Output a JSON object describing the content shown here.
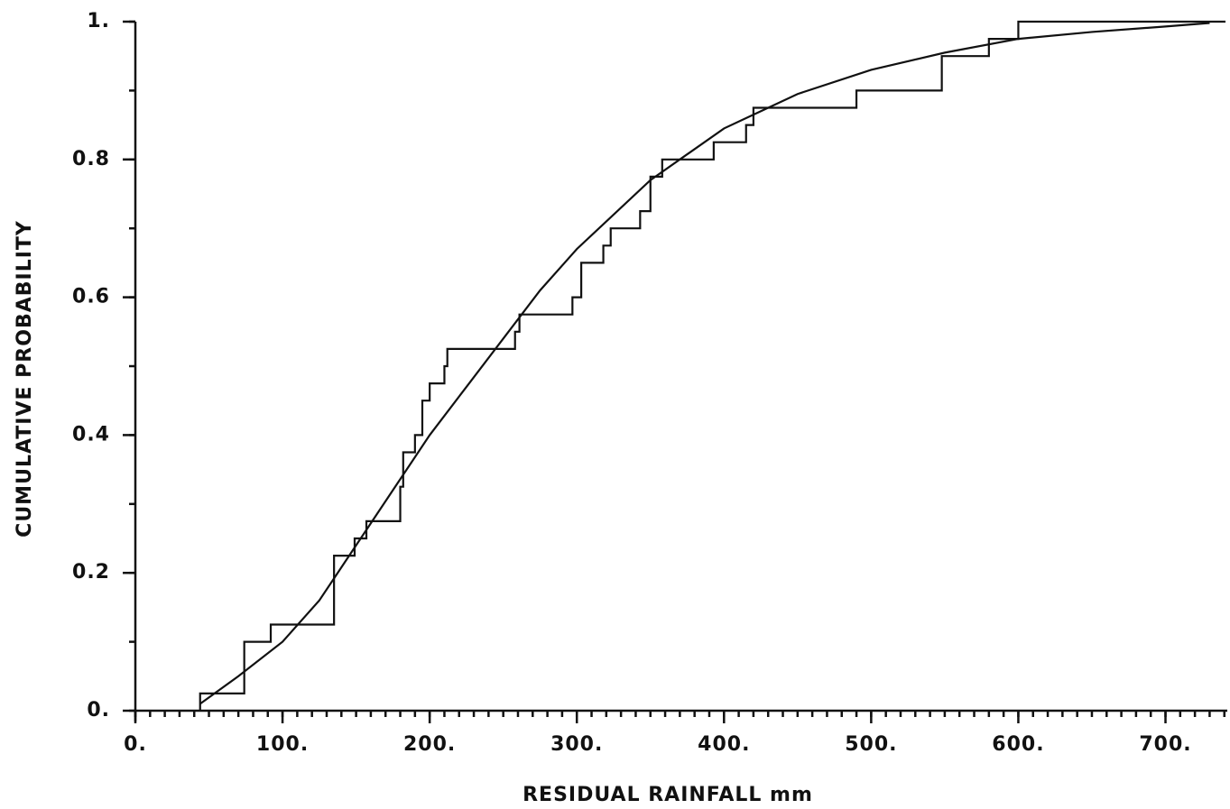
{
  "chart_data": {
    "type": "line",
    "x_label": "RESIDUAL RAINFALL mm",
    "y_label": "CUMULATIVE PROBABILITY",
    "xlim": [
      0,
      742
    ],
    "ylim": [
      0,
      1.0
    ],
    "xticks": [
      {
        "value": 0,
        "label": "0."
      },
      {
        "value": 100,
        "label": "100."
      },
      {
        "value": 200,
        "label": "200."
      },
      {
        "value": 300,
        "label": "300."
      },
      {
        "value": 400,
        "label": "400."
      },
      {
        "value": 500,
        "label": "500."
      },
      {
        "value": 600,
        "label": "600."
      },
      {
        "value": 700,
        "label": "700."
      }
    ],
    "yticks": [
      {
        "value": 0,
        "label": "0."
      },
      0.2,
      0.4,
      0.6,
      0.8,
      {
        "value": 1,
        "label": "1."
      }
    ],
    "xminor": 10,
    "yminor": 0.1,
    "series": [
      {
        "style": "step",
        "color": "#111",
        "x": [
          44,
          74,
          92,
          135,
          149,
          157,
          180,
          182,
          190,
          195,
          200,
          210,
          212,
          258,
          261,
          297,
          303,
          318,
          323,
          343,
          350,
          358,
          393,
          415,
          420,
          490,
          548,
          580,
          600
        ],
        "values": [
          0.025,
          0.1,
          0.125,
          0.225,
          0.25,
          0.275,
          0.325,
          0.375,
          0.4,
          0.45,
          0.475,
          0.5,
          0.525,
          0.55,
          0.575,
          0.6,
          0.65,
          0.675,
          0.7,
          0.725,
          0.775,
          0.8,
          0.825,
          0.85,
          0.875,
          0.9,
          0.95,
          0.975,
          1.0
        ]
      },
      {
        "style": "smooth",
        "color": "#111",
        "x": [
          44,
          70,
          100,
          125,
          150,
          175,
          200,
          225,
          250,
          275,
          300,
          350,
          400,
          450,
          500,
          550,
          600,
          650,
          700,
          730
        ],
        "values": [
          0.01,
          0.05,
          0.1,
          0.16,
          0.24,
          0.32,
          0.4,
          0.47,
          0.54,
          0.61,
          0.67,
          0.77,
          0.845,
          0.895,
          0.93,
          0.955,
          0.975,
          0.985,
          0.993,
          0.998
        ]
      }
    ]
  }
}
